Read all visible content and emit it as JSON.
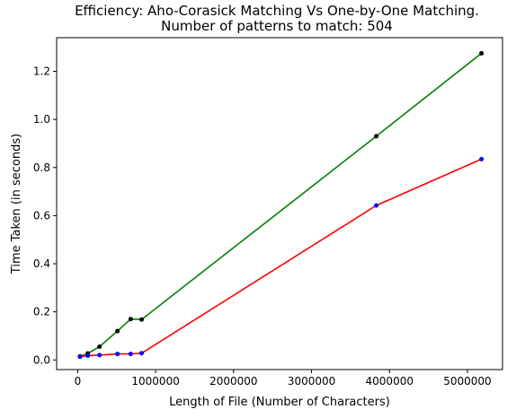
{
  "chart_data": {
    "type": "line",
    "title": "Efficiency: Aho-Corasick Matching Vs One-by-One Matching.",
    "subtitle": "Number of patterns to match: 504",
    "xlabel": "Length of File (Number of Characters)",
    "ylabel": "Time Taken (in seconds)",
    "xlim": [
      -270000,
      5450000
    ],
    "ylim": [
      -0.04,
      1.34
    ],
    "xticks": [
      0,
      1000000,
      2000000,
      3000000,
      4000000,
      5000000
    ],
    "xtick_labels": [
      "0",
      "1000000",
      "2000000",
      "3000000",
      "4000000",
      "5000000"
    ],
    "yticks": [
      0.0,
      0.2,
      0.4,
      0.6,
      0.8,
      1.0,
      1.2
    ],
    "ytick_labels": [
      "0.0",
      "0.2",
      "0.4",
      "0.6",
      "0.8",
      "1.0",
      "1.2"
    ],
    "grid": false,
    "legend": "none",
    "series": [
      {
        "color": "#008000",
        "marker_color": "#000000",
        "points": [
          [
            30000,
            0.015
          ],
          [
            130000,
            0.027
          ],
          [
            280000,
            0.055
          ],
          [
            510000,
            0.12
          ],
          [
            680000,
            0.17
          ],
          [
            820000,
            0.168
          ],
          [
            3830000,
            0.93
          ],
          [
            5180000,
            1.275
          ]
        ]
      },
      {
        "color": "#ff0000",
        "marker_color": "#0000ff",
        "points": [
          [
            30000,
            0.013
          ],
          [
            130000,
            0.018
          ],
          [
            280000,
            0.02
          ],
          [
            510000,
            0.025
          ],
          [
            680000,
            0.025
          ],
          [
            820000,
            0.028
          ],
          [
            3830000,
            0.642
          ],
          [
            5180000,
            0.835
          ]
        ]
      }
    ]
  }
}
